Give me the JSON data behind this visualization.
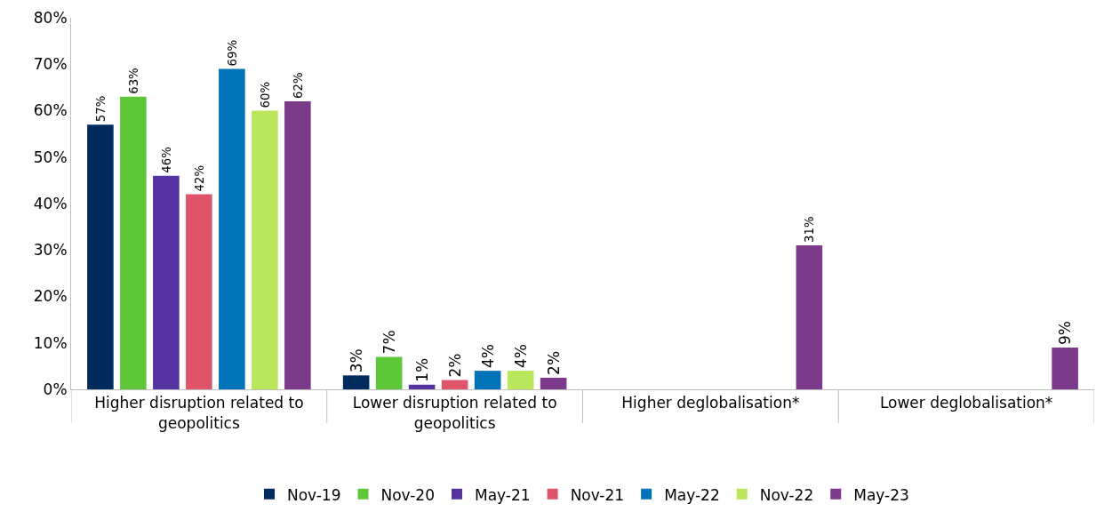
{
  "chart_data": {
    "type": "bar",
    "categories": [
      "Higher disruption related to geopolitics",
      "Lower disruption related to geopolitics",
      "Higher deglobalisation*",
      "Lower deglobalisation*"
    ],
    "series": [
      {
        "name": "Nov-19",
        "color": "#002b5c",
        "values": [
          57,
          3,
          null,
          null
        ],
        "value_labels": [
          "57%",
          "3%",
          null,
          null
        ]
      },
      {
        "name": "Nov-20",
        "color": "#5ec639",
        "values": [
          63,
          7,
          null,
          null
        ],
        "value_labels": [
          "63%",
          "7%",
          null,
          null
        ]
      },
      {
        "name": "May-21",
        "color": "#5533a0",
        "values": [
          46,
          1,
          null,
          null
        ],
        "value_labels": [
          "46%",
          "1%",
          null,
          null
        ]
      },
      {
        "name": "Nov-21",
        "color": "#e0546a",
        "values": [
          42,
          2,
          null,
          null
        ],
        "value_labels": [
          "42%",
          "2%",
          null,
          null
        ]
      },
      {
        "name": "May-22",
        "color": "#0073b8",
        "values": [
          69,
          4,
          null,
          null
        ],
        "value_labels": [
          "69%",
          "4%",
          null,
          null
        ]
      },
      {
        "name": "Nov-22",
        "color": "#b9e65a",
        "values": [
          60,
          4,
          null,
          null
        ],
        "value_labels": [
          "60%",
          "4%",
          null,
          null
        ]
      },
      {
        "name": "May-23",
        "color": "#7c3a8a",
        "values": [
          62,
          2.5,
          31,
          9
        ],
        "value_labels": [
          "62%",
          "2%",
          "31%",
          "9%"
        ]
      }
    ],
    "ylim": [
      0,
      80
    ],
    "yticks": [
      {
        "value": 0,
        "label": "0%"
      },
      {
        "value": 10,
        "label": "10%"
      },
      {
        "value": 20,
        "label": "20%"
      },
      {
        "value": 30,
        "label": "30%"
      },
      {
        "value": 40,
        "label": "40%"
      },
      {
        "value": 50,
        "label": "50%"
      },
      {
        "value": 60,
        "label": "60%"
      },
      {
        "value": 70,
        "label": "70%"
      },
      {
        "value": 80,
        "label": "80%"
      }
    ],
    "grid": false,
    "legend": "bottom"
  }
}
